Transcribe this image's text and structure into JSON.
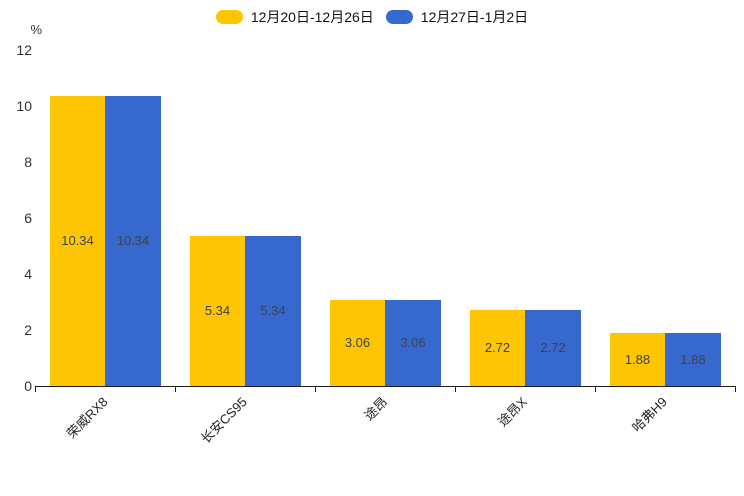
{
  "y_axis": {
    "unit": "%",
    "ticks": [
      0,
      2,
      4,
      6,
      8,
      10,
      12
    ]
  },
  "legend": {
    "items": [
      {
        "label": "12月20日-12月26日",
        "color": "#FDC504"
      },
      {
        "label": "12月27日-1月2日",
        "color": "#3768CE"
      }
    ]
  },
  "chart_data": {
    "type": "bar",
    "title": "",
    "xlabel": "",
    "ylabel": "%",
    "categories": [
      "荣威RX8",
      "长安CS95",
      "途昂",
      "途昂X",
      "哈弗H9"
    ],
    "series": [
      {
        "name": "12月20日-12月26日",
        "color": "#FDC504",
        "values": [
          10.34,
          5.34,
          3.06,
          2.72,
          1.88
        ]
      },
      {
        "name": "12月27日-1月2日",
        "color": "#3768CE",
        "values": [
          10.34,
          5.34,
          3.06,
          2.72,
          1.88
        ]
      }
    ],
    "ylim": [
      0,
      12
    ],
    "ytick_interval": 2,
    "grid": false,
    "legend_position": "top",
    "value_labels": "inside-center",
    "value_label_color": "#3f4350",
    "axis_color": "#1a1a1a",
    "tick_label_color": "#333333"
  }
}
